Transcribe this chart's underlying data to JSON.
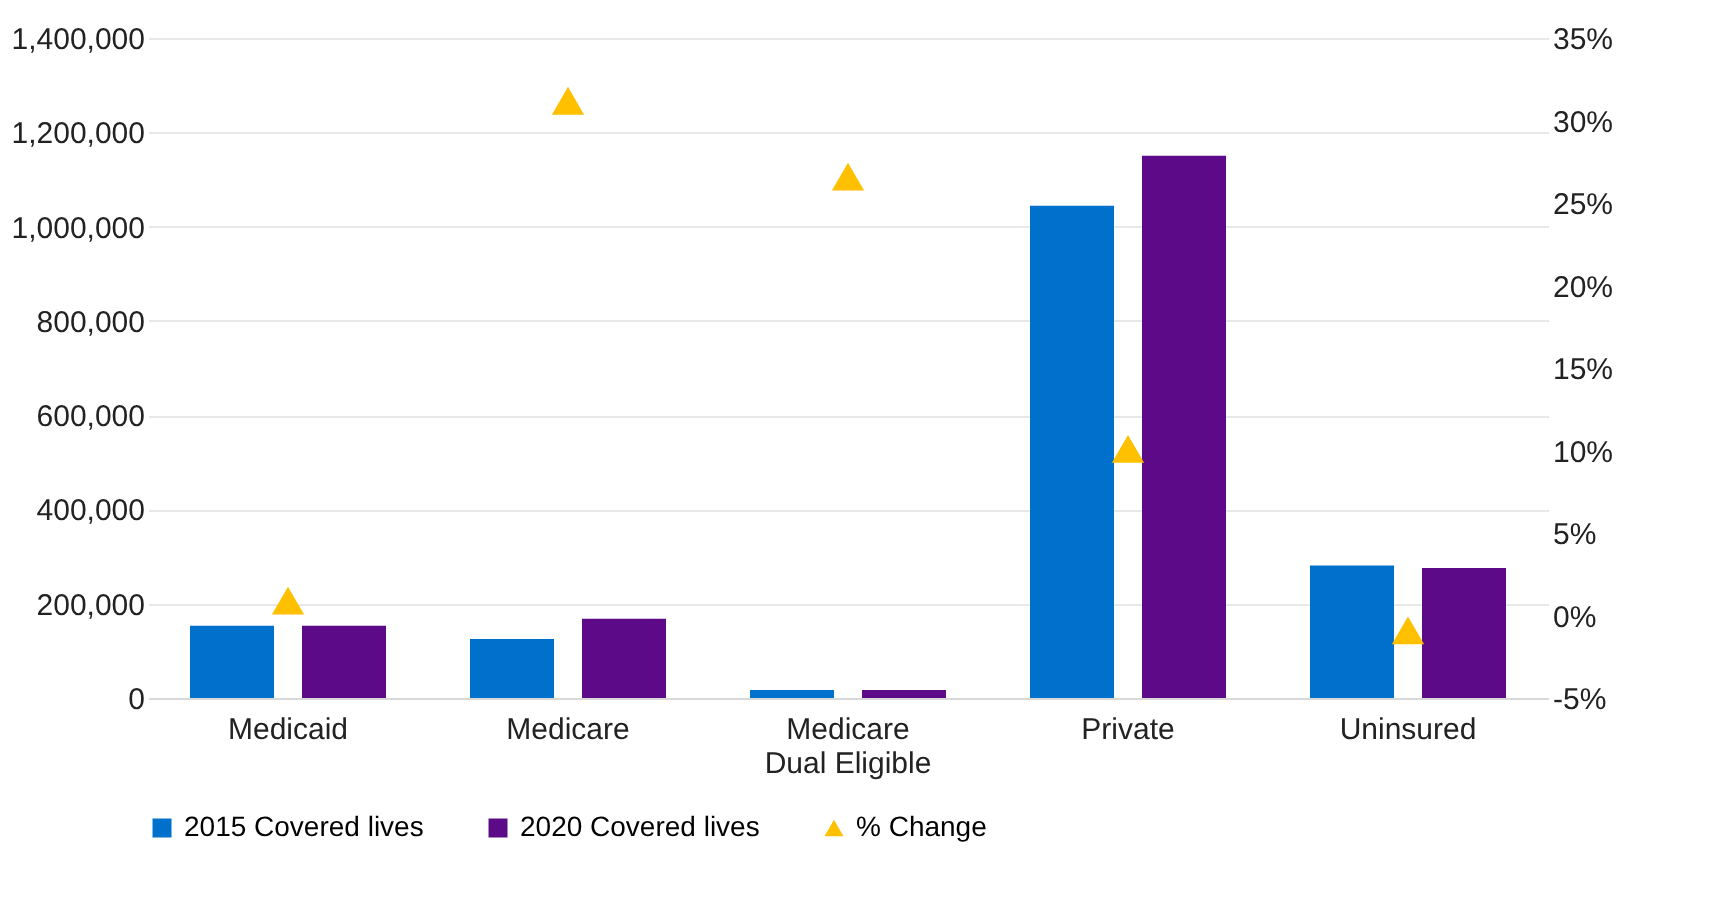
{
  "chart_data": {
    "type": "bar",
    "categories": [
      "Medicaid",
      "Medicare",
      "Medicare Dual Eligible",
      "Private",
      "Uninsured"
    ],
    "series": [
      {
        "name": "2015 Covered lives",
        "color": "#0070cd",
        "values": [
          153000,
          125000,
          17000,
          1044000,
          281000
        ]
      },
      {
        "name": "2020 Covered lives",
        "color": "#5c0a87",
        "values": [
          153000,
          168000,
          17000,
          1150000,
          276000
        ]
      },
      {
        "name": "% Change",
        "type": "scatter",
        "axis": "y2",
        "marker": "triangle",
        "color": "#ffc000",
        "values": [
          0.9,
          31.2,
          26.6,
          10.1,
          -0.9
        ]
      }
    ],
    "ylim": [
      0,
      1400000
    ],
    "yticks": [
      0,
      {
        "value": 200000,
        "label": "200,000"
      },
      {
        "value": 400000,
        "label": "400,000"
      },
      {
        "value": 600000,
        "label": "600,000"
      },
      {
        "value": 800000,
        "label": "800,000"
      },
      {
        "value": 1000000,
        "label": "1,000,000"
      },
      {
        "value": 1200000,
        "label": "1,200,000"
      },
      {
        "value": 1400000,
        "label": "1,400,000"
      }
    ],
    "y2lim": [
      -5,
      35
    ],
    "y2ticks": [
      {
        "value": -5,
        "label": "-5%"
      },
      {
        "value": 0,
        "label": "0%"
      },
      {
        "value": 5,
        "label": "5%"
      },
      {
        "value": 10,
        "label": "10%"
      },
      {
        "value": 15,
        "label": "15%"
      },
      {
        "value": 20,
        "label": "20%"
      },
      {
        "value": 25,
        "label": "25%"
      },
      {
        "value": 30,
        "label": "30%"
      },
      {
        "value": 35,
        "label": "35%"
      }
    ],
    "grid": "y",
    "legend": "bottom"
  }
}
